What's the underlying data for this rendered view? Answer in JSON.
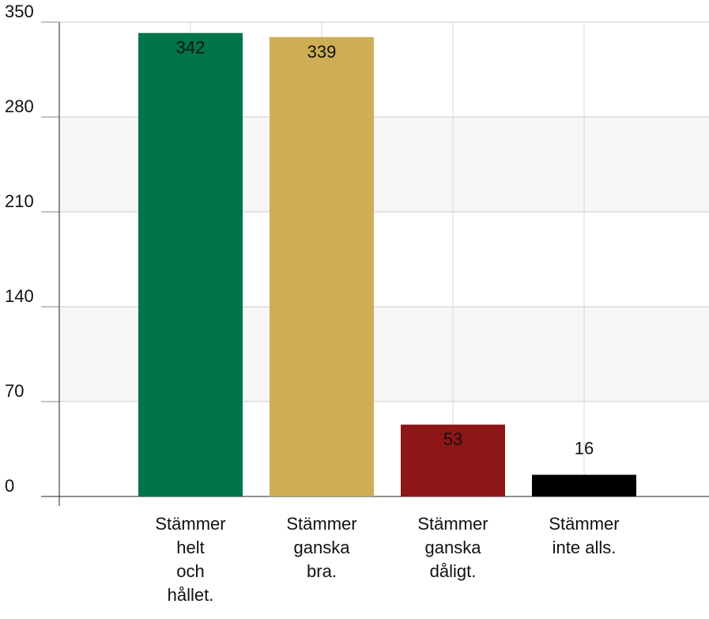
{
  "chart_data": {
    "type": "bar",
    "categories": [
      [
        "Stämmer",
        "helt",
        "och",
        "hållet."
      ],
      [
        "Stämmer",
        "ganska",
        "bra."
      ],
      [
        "Stämmer",
        "ganska",
        "dåligt."
      ],
      [
        "Stämmer",
        "inte alls."
      ]
    ],
    "values": [
      342,
      339,
      53,
      16
    ],
    "colors": [
      "#00754a",
      "#cdae55",
      "#8e1616",
      "#000000"
    ],
    "ylim": [
      0,
      350
    ],
    "yticks": [
      0,
      70,
      140,
      210,
      280,
      350
    ],
    "grid": true
  }
}
